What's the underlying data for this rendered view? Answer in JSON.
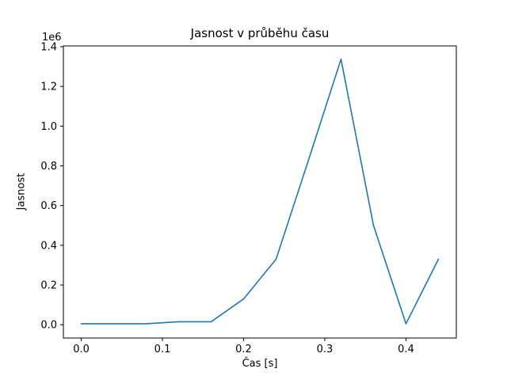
{
  "chart_data": {
    "type": "line",
    "title": "Jasnost v průběhu času",
    "xlabel": "Čas [s]",
    "ylabel": "Jasnost",
    "offset_text": "1e6",
    "x": [
      0.0,
      0.04,
      0.08,
      0.12,
      0.16,
      0.2,
      0.24,
      0.28,
      0.32,
      0.36,
      0.4,
      0.44
    ],
    "y": [
      5000,
      5000,
      5000,
      15000,
      15000,
      130000,
      330000,
      830000,
      1337000,
      500000,
      5000,
      330000
    ],
    "x_ticks": [
      0.0,
      0.1,
      0.2,
      0.3,
      0.4
    ],
    "y_ticks": [
      0,
      200000,
      400000,
      600000,
      800000,
      1000000,
      1200000,
      1400000
    ],
    "xlim": [
      -0.022,
      0.462
    ],
    "ylim": [
      -67000,
      1404000
    ],
    "line_color": "#1f77b4",
    "spine_color": "#000000",
    "background": "#ffffff",
    "grid": false,
    "legend_position": "none"
  }
}
